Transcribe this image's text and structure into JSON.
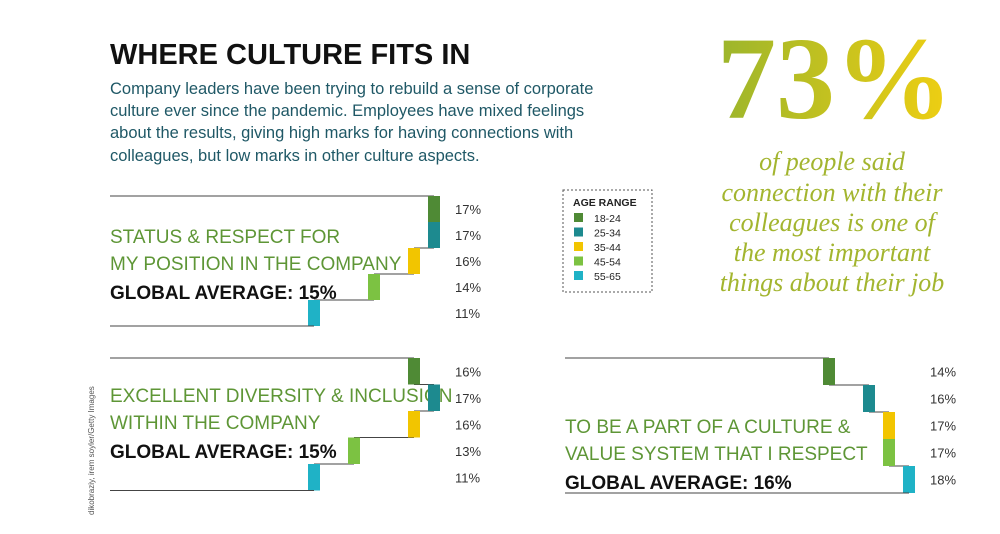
{
  "header": {
    "title": "WHERE CULTURE FITS IN",
    "intro_lines": [
      "Company leaders have been trying to rebuild a sense of corporate",
      "culture ever since the pandemic. Employees have mixed feelings",
      "about the results, giving high marks for having connections with",
      "colleagues, but low marks in other culture aspects."
    ]
  },
  "highlight": {
    "value_label": "73%",
    "text_lines": [
      "of people said",
      "connection with their",
      "colleagues is one of",
      "the most important",
      "things about their job"
    ]
  },
  "credit": "dikobraziy, irem soyler/Getty Images",
  "age_range": {
    "title": "AGE RANGE",
    "categories": [
      "18-24",
      "25-34",
      "35-44",
      "45-54",
      "55-65"
    ],
    "colors": [
      "#4f8a35",
      "#1d8a8f",
      "#f2c500",
      "#7cc242",
      "#1fb2c6"
    ]
  },
  "chart_data": [
    {
      "type": "step",
      "title_lines": [
        "STATUS & RESPECT FOR",
        "MY POSITION IN THE COMPANY"
      ],
      "subtitle": "GLOBAL AVERAGE: 15%",
      "values": [
        17,
        17,
        16,
        14,
        11
      ],
      "value_labels": [
        "17%",
        "17%",
        "16%",
        "14%",
        "11%"
      ],
      "xlim": [
        0,
        20
      ]
    },
    {
      "type": "step",
      "title_lines": [
        "EXCELLENT DIVERSITY & INCLUSION",
        "WITHIN THE COMPANY"
      ],
      "subtitle": "GLOBAL AVERAGE: 15%",
      "values": [
        16,
        17,
        16,
        13,
        11
      ],
      "value_labels": [
        "16%",
        "17%",
        "16%",
        "13%",
        "11%"
      ],
      "xlim": [
        0,
        20
      ]
    },
    {
      "type": "step",
      "title_lines": [
        "TO BE A PART OF A CULTURE &",
        "VALUE SYSTEM THAT I RESPECT"
      ],
      "subtitle": "GLOBAL AVERAGE: 16%",
      "values": [
        14,
        16,
        17,
        17,
        18
      ],
      "value_labels": [
        "14%",
        "16%",
        "17%",
        "17%",
        "18%"
      ],
      "xlim": [
        0,
        20
      ]
    }
  ]
}
